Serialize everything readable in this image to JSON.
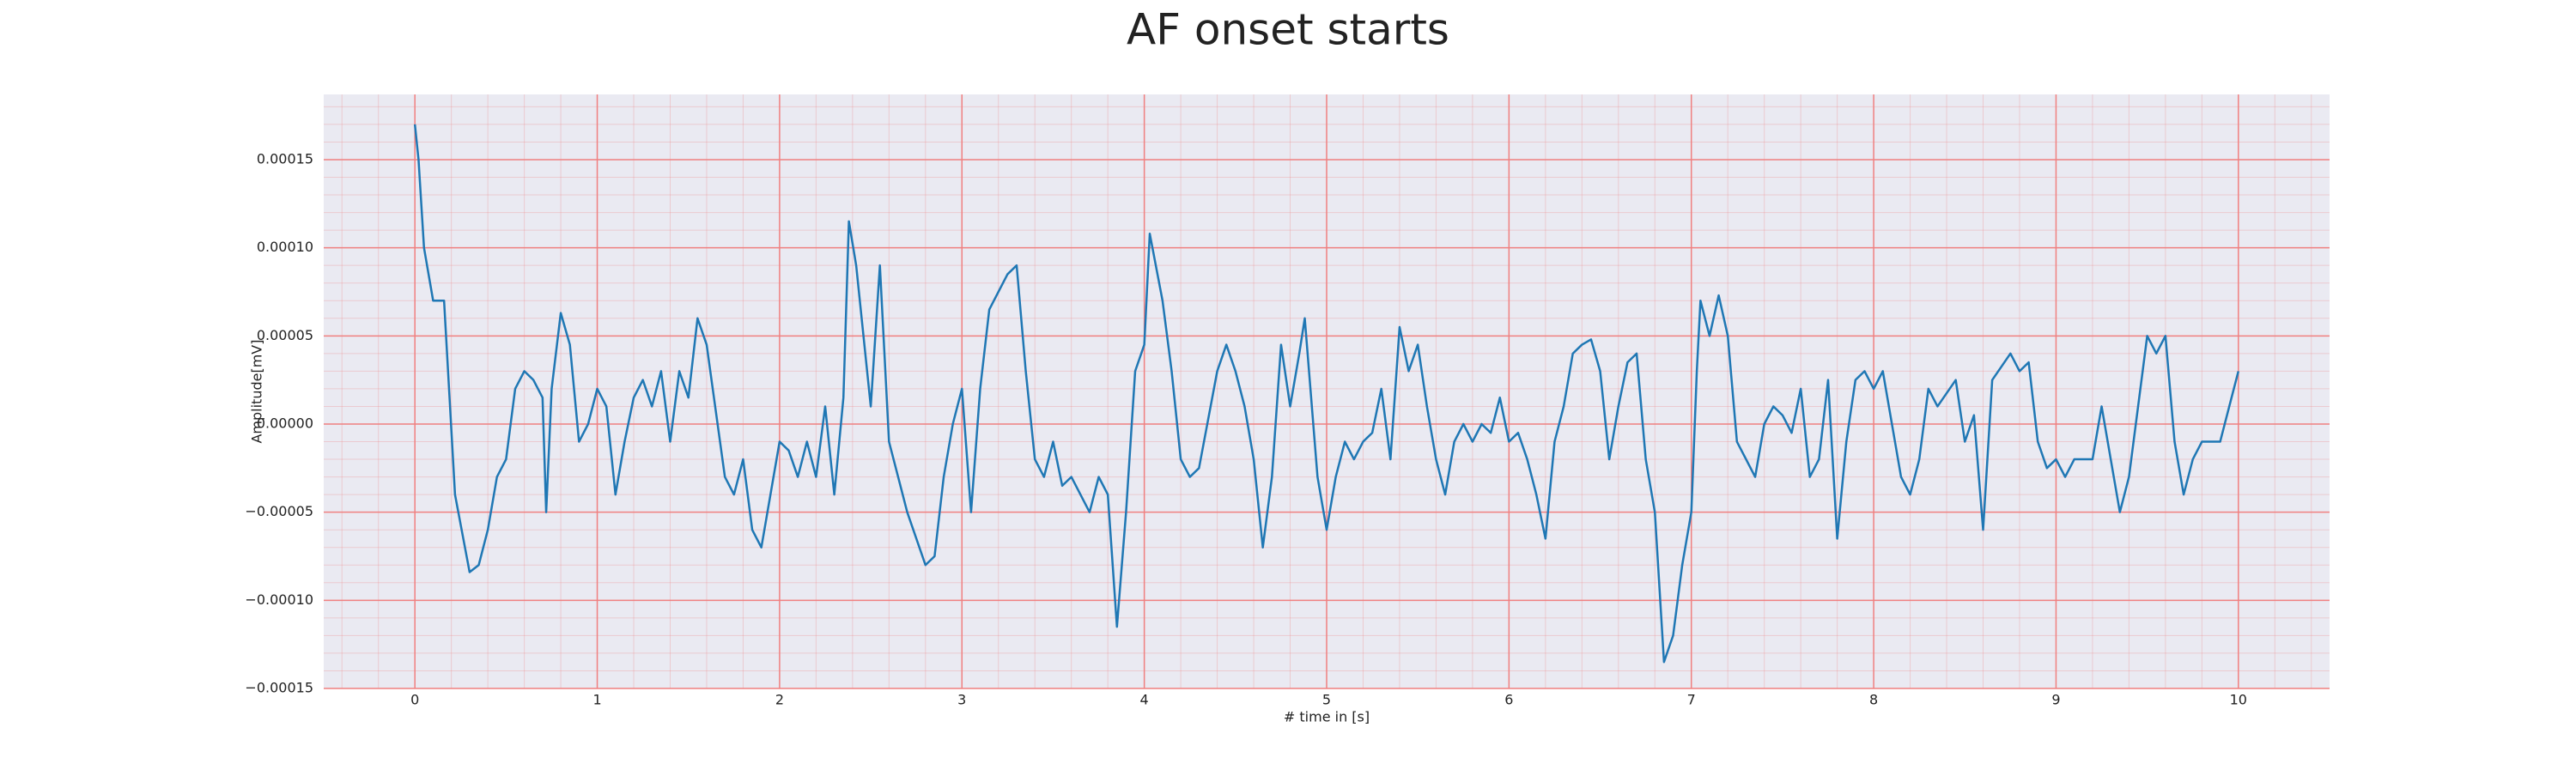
{
  "chart_data": {
    "type": "line",
    "title": "AF onset starts",
    "xlabel": "# time in [s]",
    "ylabel": "Amplitude[mV]",
    "x": [
      0,
      0.02,
      0.05,
      0.1,
      0.16,
      0.22,
      0.3,
      0.35,
      0.4,
      0.45,
      0.5,
      0.55,
      0.6,
      0.65,
      0.7,
      0.72,
      0.75,
      0.8,
      0.85,
      0.9,
      0.95,
      1.0,
      1.05,
      1.1,
      1.15,
      1.2,
      1.25,
      1.3,
      1.35,
      1.4,
      1.45,
      1.5,
      1.55,
      1.6,
      1.7,
      1.75,
      1.8,
      1.85,
      1.9,
      1.95,
      2.0,
      2.05,
      2.1,
      2.15,
      2.2,
      2.25,
      2.3,
      2.35,
      2.38,
      2.42,
      2.47,
      2.5,
      2.55,
      2.6,
      2.65,
      2.7,
      2.8,
      2.85,
      2.9,
      2.95,
      3.0,
      3.05,
      3.1,
      3.15,
      3.25,
      3.3,
      3.35,
      3.4,
      3.45,
      3.5,
      3.55,
      3.6,
      3.7,
      3.75,
      3.8,
      3.85,
      3.9,
      3.95,
      4.0,
      4.03,
      4.1,
      4.15,
      4.2,
      4.25,
      4.3,
      4.4,
      4.45,
      4.5,
      4.55,
      4.6,
      4.65,
      4.7,
      4.75,
      4.8,
      4.85,
      4.88,
      4.95,
      5.0,
      5.05,
      5.1,
      5.15,
      5.2,
      5.25,
      5.3,
      5.35,
      5.4,
      5.45,
      5.5,
      5.55,
      5.6,
      5.65,
      5.7,
      5.75,
      5.8,
      5.85,
      5.9,
      5.95,
      6.0,
      6.05,
      6.1,
      6.15,
      6.2,
      6.25,
      6.3,
      6.35,
      6.4,
      6.45,
      6.5,
      6.55,
      6.6,
      6.65,
      6.7,
      6.75,
      6.8,
      6.85,
      6.9,
      6.95,
      7.0,
      7.03,
      7.05,
      7.1,
      7.15,
      7.2,
      7.25,
      7.35,
      7.4,
      7.45,
      7.5,
      7.55,
      7.6,
      7.65,
      7.7,
      7.75,
      7.8,
      7.85,
      7.9,
      7.95,
      8.0,
      8.05,
      8.1,
      8.15,
      8.2,
      8.25,
      8.3,
      8.35,
      8.45,
      8.5,
      8.55,
      8.6,
      8.65,
      8.75,
      8.8,
      8.85,
      8.9,
      8.95,
      9.0,
      9.05,
      9.1,
      9.2,
      9.25,
      9.3,
      9.35,
      9.4,
      9.45,
      9.5,
      9.55,
      9.6,
      9.65,
      9.7,
      9.75,
      9.8,
      9.85,
      9.9,
      9.95,
      10.0
    ],
    "values": [
      0.00017,
      0.00015,
      0.0001,
      7e-05,
      7e-05,
      -4e-05,
      -8.4e-05,
      -8e-05,
      -6e-05,
      -3e-05,
      -2e-05,
      2e-05,
      3e-05,
      2.5e-05,
      1.5e-05,
      -5e-05,
      2e-05,
      6.3e-05,
      4.5e-05,
      -1e-05,
      0,
      2e-05,
      1e-05,
      -4e-05,
      -1e-05,
      1.5e-05,
      2.5e-05,
      1e-05,
      3e-05,
      -1e-05,
      3e-05,
      1.5e-05,
      6e-05,
      4.5e-05,
      -3e-05,
      -4e-05,
      -2e-05,
      -6e-05,
      -7e-05,
      -4e-05,
      -1e-05,
      -1.5e-05,
      -3e-05,
      -1e-05,
      -3e-05,
      1e-05,
      -4e-05,
      1.5e-05,
      0.000115,
      9e-05,
      4e-05,
      1e-05,
      9e-05,
      -1e-05,
      -3e-05,
      -5e-05,
      -8e-05,
      -7.5e-05,
      -3e-05,
      0,
      2e-05,
      -5e-05,
      2e-05,
      6.5e-05,
      8.5e-05,
      9e-05,
      3e-05,
      -2e-05,
      -3e-05,
      -1e-05,
      -3.5e-05,
      -3e-05,
      -5e-05,
      -3e-05,
      -4e-05,
      -0.000115,
      -5e-05,
      3e-05,
      4.5e-05,
      0.000108,
      7e-05,
      3e-05,
      -2e-05,
      -3e-05,
      -2.5e-05,
      3e-05,
      4.5e-05,
      3e-05,
      1e-05,
      -2e-05,
      -7e-05,
      -3e-05,
      4.5e-05,
      1e-05,
      4e-05,
      6e-05,
      -3e-05,
      -6e-05,
      -3e-05,
      -1e-05,
      -2e-05,
      -1e-05,
      -5e-06,
      2e-05,
      -2e-05,
      5.5e-05,
      3e-05,
      4.5e-05,
      1e-05,
      -2e-05,
      -4e-05,
      -1e-05,
      0,
      -1e-05,
      0,
      -5e-06,
      1.5e-05,
      -1e-05,
      -5e-06,
      -2e-05,
      -4e-05,
      -6.5e-05,
      -1e-05,
      1e-05,
      4e-05,
      4.5e-05,
      4.8e-05,
      3e-05,
      -2e-05,
      1e-05,
      3.5e-05,
      4e-05,
      -2e-05,
      -5e-05,
      -0.000135,
      -0.00012,
      -8e-05,
      -5e-05,
      3e-05,
      7e-05,
      5e-05,
      7.3e-05,
      5e-05,
      -1e-05,
      -3e-05,
      0,
      1e-05,
      5e-06,
      -5e-06,
      2e-05,
      -3e-05,
      -2e-05,
      2.5e-05,
      -6.5e-05,
      -1e-05,
      2.5e-05,
      3e-05,
      2e-05,
      3e-05,
      0,
      -3e-05,
      -4e-05,
      -2e-05,
      2e-05,
      1e-05,
      2.5e-05,
      -1e-05,
      5e-06,
      -6e-05,
      2.5e-05,
      4e-05,
      3e-05,
      3.5e-05,
      -1e-05,
      -2.5e-05,
      -2e-05,
      -3e-05,
      -2e-05,
      -2e-05,
      1e-05,
      -2e-05,
      -5e-05,
      -3e-05,
      1e-05,
      5e-05,
      4e-05,
      5e-05,
      -1e-05,
      -4e-05,
      -2e-05,
      -1e-05,
      -1e-05,
      -1e-05,
      1e-05,
      3e-05
    ],
    "color": "#1f77b4",
    "xlim": [
      -0.5,
      10.5
    ],
    "ylim": [
      -0.00015,
      0.000187
    ],
    "xticks": [
      0,
      1,
      2,
      3,
      4,
      5,
      6,
      7,
      8,
      9,
      10
    ],
    "yticks": [
      {
        "value": -0.00015,
        "label": "−0.00015"
      },
      {
        "value": -0.0001,
        "label": "−0.00010"
      },
      {
        "value": -5e-05,
        "label": "−0.00005"
      },
      {
        "value": 0,
        "label": "0.00000"
      },
      5e-05,
      {
        "value": 0.0001,
        "label": "0.00010"
      },
      0.00015
    ],
    "grid": true,
    "grid_color": "#f08080",
    "minor_grid": true,
    "background": "#eaeaf2"
  }
}
